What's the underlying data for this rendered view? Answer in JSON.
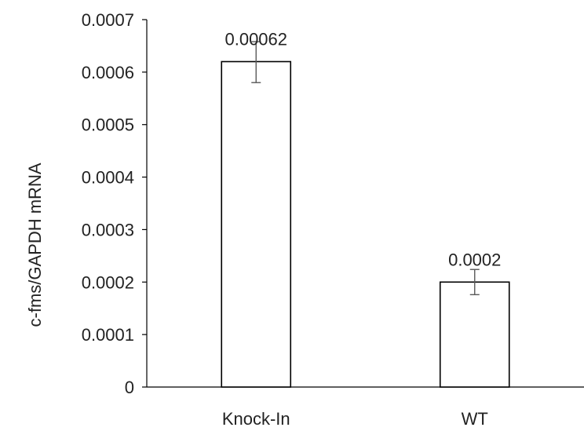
{
  "chart_data": {
    "type": "bar",
    "title": "",
    "xlabel": "",
    "ylabel": "c-fms/GAPDH mRNA",
    "categories": [
      "Knock-In",
      "WT"
    ],
    "values": [
      0.00062,
      0.0002
    ],
    "error_low": [
      0.00058,
      0.000176
    ],
    "error_high": [
      0.000658,
      0.000224
    ],
    "data_labels": [
      "0.00062",
      "0.0002"
    ],
    "ylim": [
      0,
      0.0007
    ],
    "yticks": [
      0,
      0.0001,
      0.0002,
      0.0003,
      0.0004,
      0.0005,
      0.0006,
      0.0007
    ],
    "ytick_labels": [
      "0",
      "0.0001",
      "0.0002",
      "0.0003",
      "0.0004",
      "0.0005",
      "0.0006",
      "0.0007"
    ],
    "grid": false,
    "legend": "none",
    "bar_fill": "#ffffff",
    "bar_stroke": "#000000",
    "axis_color": "#000000",
    "error_bar_color": "#595959"
  }
}
